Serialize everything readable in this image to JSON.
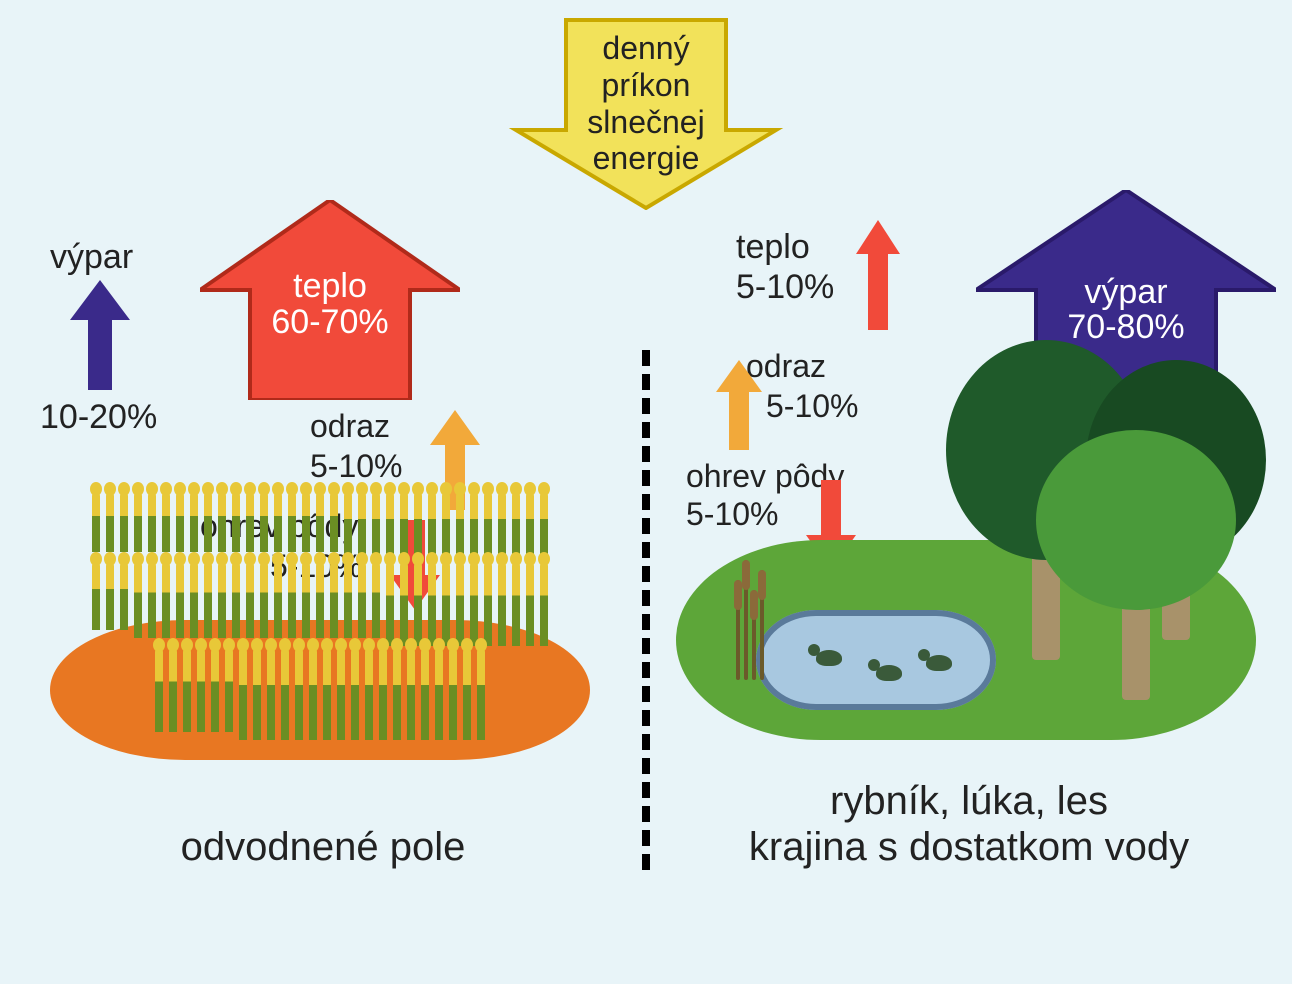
{
  "diagram": {
    "background_color": "#e8f4f8",
    "font_family": "Arial",
    "caption_fontsize": 40,
    "label_fontsize": 34,
    "text_color": "#222222"
  },
  "solar": {
    "lines": {
      "l1": "denný",
      "l2": "príkon",
      "l3": "slnečnej",
      "l4": "energie"
    },
    "arrow_fill": "#f2e25a",
    "arrow_stroke": "#c9a800",
    "fontsize": 32,
    "text_color": "#222222"
  },
  "divider": {
    "dash_color": "#000000"
  },
  "left": {
    "caption": "odvodnené pole",
    "vypar": {
      "label": "výpar",
      "value": "10-20%",
      "arrow_color": "#3a2a8a"
    },
    "teplo": {
      "label": "teplo",
      "value": "60-70%",
      "arrow_fill": "#f14a3a",
      "arrow_stroke": "#b02a1a",
      "text_color": "#ffffff"
    },
    "odraz": {
      "label": "odraz",
      "value": "5-10%",
      "arrow_color": "#f2a93a"
    },
    "ohrev": {
      "label": "ohrev pôdy",
      "value": "5-10%",
      "arrow_color": "#f14a3a"
    },
    "field": {
      "ground_color": "#e87722",
      "stalk_top": "#e8c838",
      "stalk_bottom": "#6b8e23",
      "stalk_count": 90
    }
  },
  "right": {
    "caption_l1": "rybník, lúka, les",
    "caption_l2": "krajina s dostatkom vody",
    "teplo": {
      "label": "teplo",
      "value": "5-10%",
      "arrow_color": "#f14a3a"
    },
    "vypar": {
      "label": "výpar",
      "value": "70-80%",
      "arrow_fill": "#3a2a8a",
      "arrow_stroke": "#2a1a6a",
      "text_color": "#ffffff"
    },
    "odraz": {
      "label": "odraz",
      "value": "5-10%",
      "arrow_color": "#f2a93a"
    },
    "ohrev": {
      "label": "ohrev pôdy",
      "value": "5-10%",
      "arrow_color": "#f14a3a"
    },
    "forest": {
      "meadow_color": "#5da639",
      "pond_fill": "#a8c8e0",
      "pond_stroke": "#5a7a9a",
      "trunk_color": "#a8926a",
      "tree_colors": [
        "#1f5a2a",
        "#2a6a2a",
        "#184a22",
        "#4a9a3a"
      ],
      "duck_color": "#3a5a3a",
      "reed_color": "#6b5a2a"
    }
  }
}
